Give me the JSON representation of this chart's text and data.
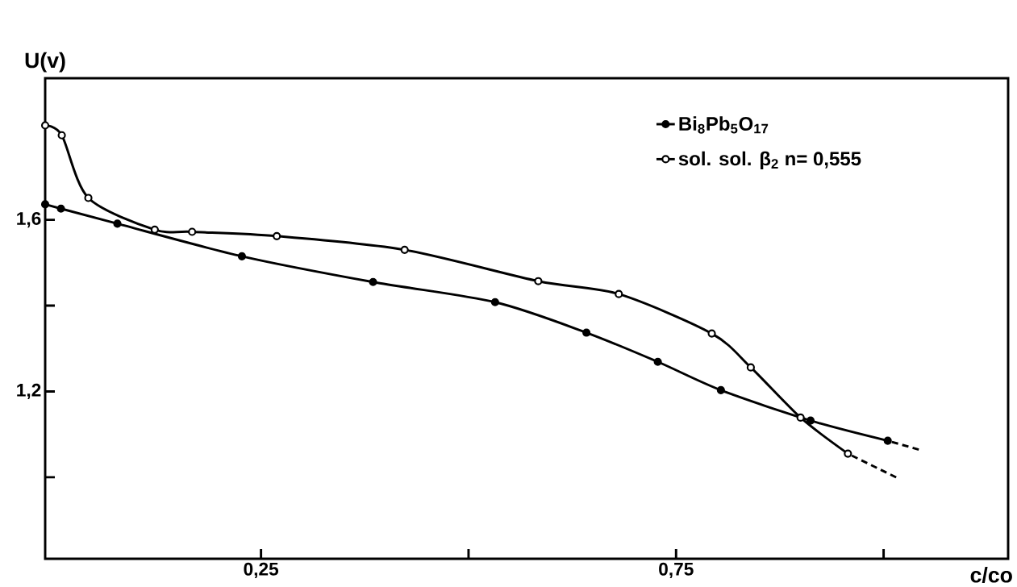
{
  "chart_data": {
    "type": "line",
    "xlabel": "c/co",
    "ylabel": "U(v)",
    "xlim": [
      -0.01,
      1.15
    ],
    "ylim": [
      0.81,
      1.93
    ],
    "xticks": [
      {
        "value": 0.25,
        "label": "0,25"
      },
      {
        "value": 0.5,
        "label": null
      },
      {
        "value": 0.75,
        "label": "0,75"
      },
      {
        "value": 1.0,
        "label": null
      }
    ],
    "yticks": [
      {
        "value": 1.0,
        "label": null
      },
      {
        "value": 1.2,
        "label": "1,2"
      },
      {
        "value": 1.4,
        "label": null
      },
      {
        "value": 1.6,
        "label": "1,6"
      }
    ],
    "legend": "top right",
    "series": [
      {
        "name": "Bi$_{8}$Pb$_{5}$O$_{17}$",
        "color": "#000000",
        "marker": "circle",
        "x": [
          -0.01,
          0.009,
          0.077,
          0.227,
          0.385,
          0.532,
          0.642,
          0.728,
          0.804,
          0.912,
          1.005
        ],
        "values": [
          1.636,
          1.626,
          1.591,
          1.515,
          1.455,
          1.408,
          1.337,
          1.269,
          1.203,
          1.132,
          1.085
        ]
      },
      {
        "name": "sol. sol. β$_{2}$  n= 0,555",
        "color": "#000000",
        "marker": "circle",
        "x": [
          -0.01,
          0.01,
          0.042,
          0.122,
          0.167,
          0.269,
          0.423,
          0.584,
          0.681,
          0.793,
          0.84,
          0.9,
          0.957
        ],
        "values": [
          1.82,
          1.797,
          1.651,
          1.577,
          1.572,
          1.562,
          1.53,
          1.457,
          1.427,
          1.335,
          1.256,
          1.139,
          1.055
        ]
      },
      {
        "color": "#000000",
        "marker": "none",
        "line_style": "dashed",
        "x": [
          1.005,
          1.047
        ],
        "values": [
          1.085,
          1.062
        ]
      },
      {
        "color": "#000000",
        "marker": "none",
        "line_style": "dashed",
        "x": [
          0.957,
          1.018
        ],
        "values": [
          1.055,
          0.997
        ]
      }
    ]
  }
}
